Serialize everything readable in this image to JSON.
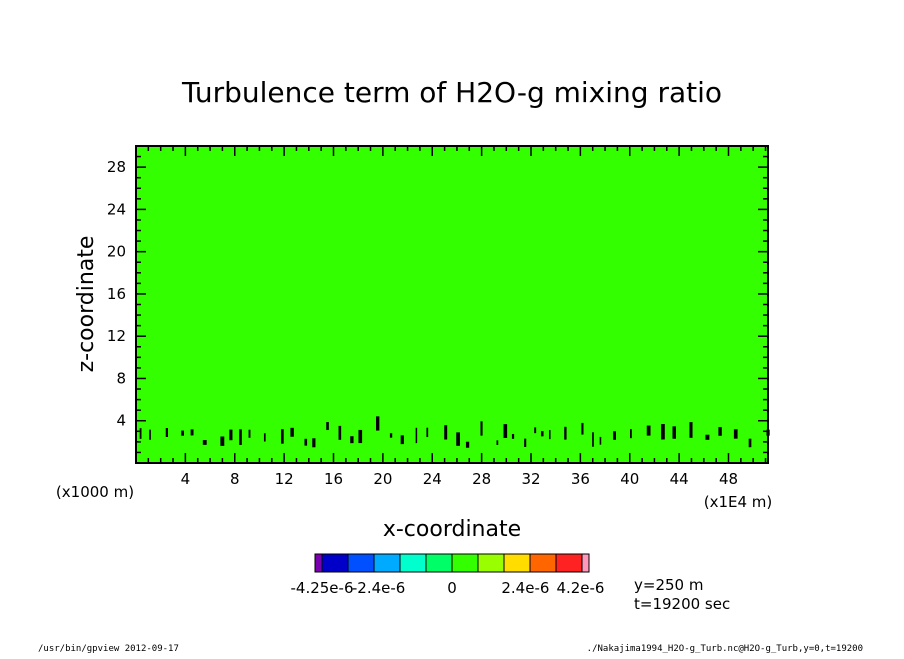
{
  "chart_data": {
    "type": "heatmap",
    "title": "Turbulence term of H2O-g mixing ratio",
    "xlabel": "x-coordinate",
    "ylabel": "z-coordinate",
    "x_unit_note": "(x1E4 m)",
    "y_unit_note": "(x1000 m)",
    "xlim": [
      0,
      51.2
    ],
    "ylim": [
      0,
      30
    ],
    "x_ticks": [
      4,
      8,
      12,
      16,
      20,
      24,
      28,
      32,
      36,
      40,
      44,
      48
    ],
    "y_ticks": [
      4,
      8,
      12,
      16,
      20,
      24,
      28
    ],
    "x_tick_labels": [
      "4",
      "8",
      "12",
      "16",
      "20",
      "24",
      "28",
      "32",
      "36",
      "40",
      "44",
      "48"
    ],
    "y_tick_labels": [
      "4",
      "8",
      "12",
      "16",
      "20",
      "24",
      "28"
    ],
    "field_value_dominant": 0,
    "field_color": "#33ff00",
    "anomaly_color": "#000000",
    "anomalies_near_z": [
      2,
      3.5
    ],
    "colorbar": {
      "colors": [
        "#7b00b0",
        "#0000c8",
        "#0050ff",
        "#00aaff",
        "#00ffcc",
        "#00ff66",
        "#33ff00",
        "#99ff00",
        "#ffdd00",
        "#ff6600",
        "#ff2222",
        "#ff99bb"
      ],
      "labels": [
        {
          "text": "-4.25e-6",
          "at": -4.25
        },
        {
          "text": "-2.4e-6",
          "at": -2.4
        },
        {
          "text": "0",
          "at": 0
        },
        {
          "text": "2.4e-6",
          "at": 2.4
        },
        {
          "text": "4.2e-6",
          "at": 4.2
        }
      ]
    },
    "info_lines": [
      "y=250 m",
      "t=19200 sec"
    ]
  },
  "footer": {
    "left": "/usr/bin/gpview   2012-09-17",
    "right": "./Nakajima1994_H2O-g_Turb.nc@H2O-g_Turb,y=0,t=19200"
  }
}
